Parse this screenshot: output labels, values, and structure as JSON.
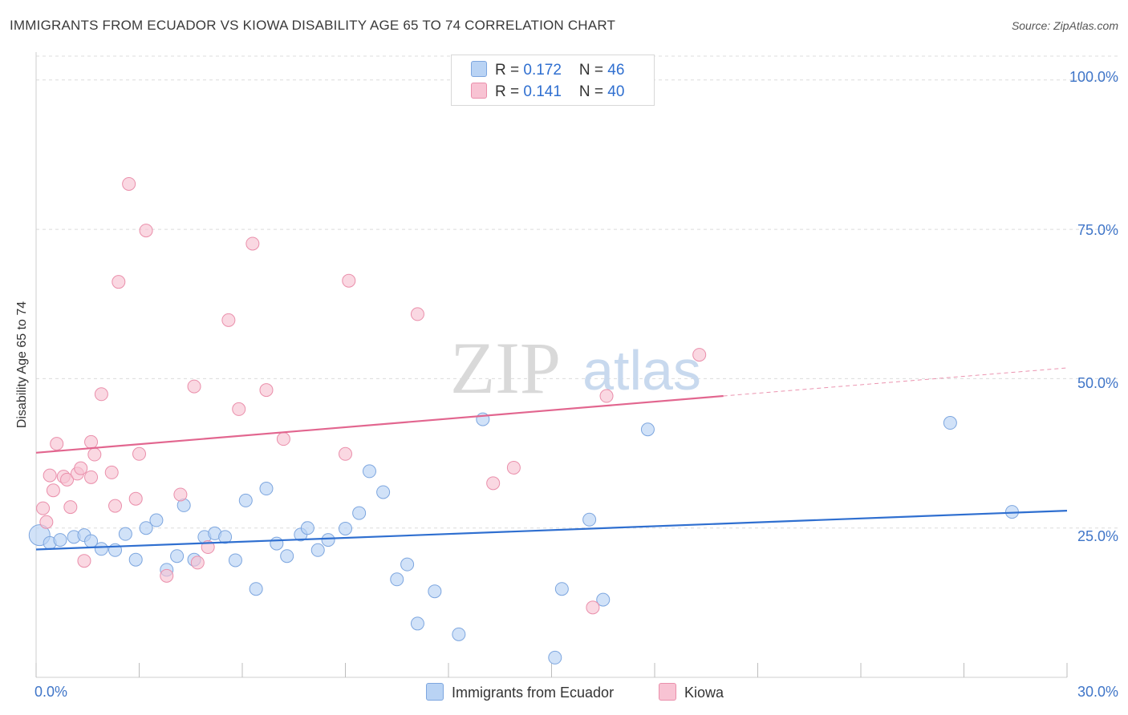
{
  "header": {
    "title": "IMMIGRANTS FROM ECUADOR VS KIOWA DISABILITY AGE 65 TO 74 CORRELATION CHART",
    "source": "Source: ZipAtlas.com"
  },
  "colors": {
    "blue_fill": "#b9d3f4",
    "blue_stroke": "#7da6df",
    "blue_line": "#2f6fd0",
    "pink_fill": "#f8c3d3",
    "pink_stroke": "#ea8fab",
    "pink_line": "#e2668f",
    "tick_text": "#3f75c8"
  },
  "legend": {
    "rows": [
      {
        "r_label": "R = ",
        "r_value": "0.172",
        "n_label": "N = ",
        "n_value": "46",
        "color": "#b9d3f4"
      },
      {
        "r_label": "R = ",
        "r_value": "0.141",
        "n_label": "N = ",
        "n_value": "40",
        "color": "#f8c3d3"
      }
    ]
  },
  "bottom_legend": {
    "items": [
      {
        "label": "Immigrants from Ecuador",
        "color": "#b9d3f4"
      },
      {
        "label": "Kiowa",
        "color": "#f8c3d3"
      }
    ]
  },
  "watermark": {
    "zip": "ZIP",
    "atlas": "atlas"
  },
  "chart_data": {
    "type": "scatter",
    "title": "IMMIGRANTS FROM ECUADOR VS KIOWA DISABILITY AGE 65 TO 74 CORRELATION CHART",
    "xlabel": "",
    "ylabel": "Disability Age 65 to 74",
    "xlim": [
      0,
      30
    ],
    "ylim": [
      0,
      104
    ],
    "x_tick_labels": [
      "0.0%",
      "30.0%"
    ],
    "y_ticks": [
      25,
      50,
      75,
      100
    ],
    "y_tick_labels": [
      "25.0%",
      "50.0%",
      "75.0%",
      "100.0%"
    ],
    "grid": true,
    "legend_position": "top-center",
    "series": [
      {
        "name": "Immigrants from Ecuador",
        "r": 0.172,
        "n": 46,
        "points": [
          [
            0.1,
            23.8
          ],
          [
            0.4,
            22.5
          ],
          [
            0.7,
            23.0
          ],
          [
            1.1,
            23.5
          ],
          [
            1.4,
            23.8
          ],
          [
            1.6,
            22.8
          ],
          [
            1.9,
            21.5
          ],
          [
            2.3,
            21.3
          ],
          [
            2.6,
            24.0
          ],
          [
            2.9,
            19.7
          ],
          [
            3.2,
            25.0
          ],
          [
            3.5,
            26.3
          ],
          [
            3.8,
            18.0
          ],
          [
            4.1,
            20.3
          ],
          [
            4.3,
            28.8
          ],
          [
            4.6,
            19.7
          ],
          [
            4.9,
            23.5
          ],
          [
            5.2,
            24.1
          ],
          [
            5.5,
            23.5
          ],
          [
            5.8,
            19.6
          ],
          [
            6.1,
            29.6
          ],
          [
            6.4,
            14.8
          ],
          [
            6.7,
            31.6
          ],
          [
            7.0,
            22.4
          ],
          [
            7.3,
            20.3
          ],
          [
            7.7,
            23.9
          ],
          [
            7.9,
            25.0
          ],
          [
            8.2,
            21.3
          ],
          [
            8.5,
            23.0
          ],
          [
            9.0,
            24.9
          ],
          [
            9.4,
            27.5
          ],
          [
            9.7,
            34.5
          ],
          [
            10.1,
            31.0
          ],
          [
            10.5,
            16.4
          ],
          [
            10.8,
            18.9
          ],
          [
            11.1,
            9.0
          ],
          [
            11.6,
            14.4
          ],
          [
            12.3,
            7.2
          ],
          [
            13.0,
            43.2
          ],
          [
            15.1,
            3.3
          ],
          [
            15.3,
            14.8
          ],
          [
            16.1,
            26.4
          ],
          [
            16.5,
            13.0
          ],
          [
            17.8,
            41.5
          ],
          [
            26.6,
            42.6
          ],
          [
            28.4,
            27.7
          ]
        ]
      },
      {
        "name": "Kiowa",
        "r": 0.141,
        "n": 40,
        "points": [
          [
            0.2,
            28.3
          ],
          [
            0.3,
            26.0
          ],
          [
            0.4,
            33.8
          ],
          [
            0.5,
            31.3
          ],
          [
            0.6,
            39.1
          ],
          [
            0.8,
            33.6
          ],
          [
            0.9,
            33.1
          ],
          [
            1.0,
            28.5
          ],
          [
            1.2,
            34.1
          ],
          [
            1.3,
            35.0
          ],
          [
            1.4,
            19.5
          ],
          [
            1.6,
            33.5
          ],
          [
            1.6,
            39.4
          ],
          [
            1.7,
            37.3
          ],
          [
            1.9,
            47.4
          ],
          [
            2.2,
            34.3
          ],
          [
            2.3,
            28.7
          ],
          [
            2.4,
            66.2
          ],
          [
            2.7,
            82.6
          ],
          [
            2.9,
            29.9
          ],
          [
            3.0,
            37.4
          ],
          [
            3.2,
            74.8
          ],
          [
            3.8,
            17.0
          ],
          [
            4.2,
            30.6
          ],
          [
            4.6,
            48.7
          ],
          [
            4.7,
            19.2
          ],
          [
            5.0,
            21.8
          ],
          [
            5.6,
            59.8
          ],
          [
            5.9,
            44.9
          ],
          [
            6.3,
            72.6
          ],
          [
            6.7,
            48.1
          ],
          [
            7.2,
            39.9
          ],
          [
            9.0,
            37.4
          ],
          [
            9.1,
            66.4
          ],
          [
            11.1,
            60.8
          ],
          [
            13.3,
            32.5
          ],
          [
            13.9,
            35.1
          ],
          [
            16.2,
            11.7
          ],
          [
            16.6,
            47.1
          ],
          [
            19.3,
            54.0
          ]
        ]
      }
    ],
    "trendlines": [
      {
        "series": "Immigrants from Ecuador",
        "x": [
          0,
          30
        ],
        "y": [
          21.4,
          27.9
        ]
      },
      {
        "series": "Kiowa",
        "x": [
          0,
          20
        ],
        "y": [
          37.6,
          47.1
        ],
        "dashed_extension": {
          "x": [
            20,
            30
          ],
          "y": [
            47.1,
            51.8
          ]
        }
      }
    ]
  }
}
